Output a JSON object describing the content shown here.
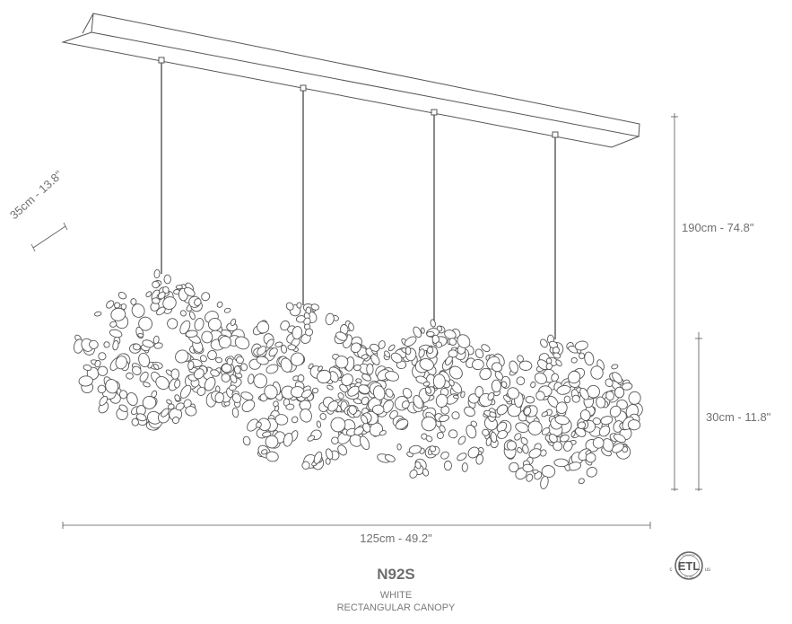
{
  "dimensions": {
    "width": "125cm - 49.2\"",
    "height_total": "190cm - 74.8\"",
    "height_cluster": "30cm - 11.8\"",
    "depth": "35cm - 13.8\""
  },
  "product": {
    "model": "N92S",
    "finish": "WHITE",
    "canopy": "RECTANGULAR CANOPY"
  },
  "certification": {
    "mark": "ETL",
    "left_letter": "c",
    "right_letter": "us",
    "top_text": "INTERTEK",
    "bottom_text": "LISTED"
  },
  "colors": {
    "line": "#555555",
    "text": "#707070"
  }
}
